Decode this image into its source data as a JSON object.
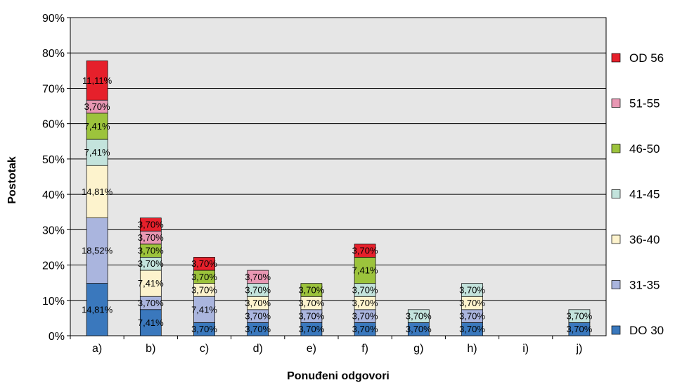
{
  "chart_data": {
    "type": "bar",
    "stacked": true,
    "xlabel": "Ponuđeni odgovori",
    "ylabel": "Postotak",
    "ylim": [
      0,
      90
    ],
    "y_ticks": [
      "0%",
      "10%",
      "20%",
      "30%",
      "40%",
      "50%",
      "60%",
      "70%",
      "80%",
      "90%"
    ],
    "grid": true,
    "legend_position": "right",
    "categories": [
      "a)",
      "b)",
      "c)",
      "d)",
      "e)",
      "f)",
      "g)",
      "h)",
      "i)",
      "j)"
    ],
    "series": [
      {
        "name": "DO 30",
        "color": "#3a78bd",
        "values": [
          14.81,
          7.41,
          3.7,
          3.7,
          3.7,
          3.7,
          3.7,
          3.7,
          0,
          3.7
        ],
        "labels": [
          "14,81%",
          "7,41%",
          "3,70%",
          "3,70%",
          "3,70%",
          "3,70%",
          "3,70%",
          "3,70%",
          "",
          "3,70%"
        ]
      },
      {
        "name": "31-35",
        "color": "#aab5de",
        "values": [
          18.52,
          3.7,
          7.41,
          3.7,
          3.7,
          3.7,
          0,
          3.7,
          0,
          0
        ],
        "labels": [
          "18,52%",
          "3,70%",
          "7,41%",
          "3,70%",
          "3,70%",
          "3,70%",
          "",
          "3,70%",
          "",
          ""
        ]
      },
      {
        "name": "36-40",
        "color": "#fdf3cd",
        "values": [
          14.81,
          7.41,
          3.7,
          3.7,
          3.7,
          3.7,
          0,
          3.7,
          0,
          0
        ],
        "labels": [
          "14,81%",
          "7,41%",
          "3,70%",
          "3,70%",
          "3,70%",
          "3,70%",
          "",
          "3,70%",
          "",
          ""
        ]
      },
      {
        "name": "41-45",
        "color": "#c3e3dc",
        "values": [
          7.41,
          3.7,
          0,
          3.7,
          0,
          3.7,
          3.7,
          3.7,
          0,
          3.7
        ],
        "labels": [
          "7,41%",
          "3,70%",
          "",
          "3,70%",
          "",
          "3,70%",
          "3,70%",
          "3,70%",
          "",
          "3,70%"
        ]
      },
      {
        "name": "46-50",
        "color": "#9cc33c",
        "values": [
          7.41,
          3.7,
          3.7,
          0,
          3.7,
          7.41,
          0,
          0,
          0,
          0
        ],
        "labels": [
          "7,41%",
          "3,70%",
          "3,70%",
          "",
          "3,70%",
          "7,41%",
          "",
          "",
          "",
          ""
        ]
      },
      {
        "name": "51-55",
        "color": "#e897b3",
        "values": [
          3.7,
          3.7,
          0,
          3.7,
          0,
          0,
          0,
          0,
          0,
          0
        ],
        "labels": [
          "3,70%",
          "3,70%",
          "",
          "3,70%",
          "",
          "",
          "",
          "",
          "",
          ""
        ]
      },
      {
        "name": "OD 56",
        "color": "#e6202b",
        "values": [
          11.11,
          3.7,
          3.7,
          0,
          0,
          3.7,
          0,
          0,
          0,
          0
        ],
        "labels": [
          "11,11%",
          "3,70%",
          "3,70%",
          "",
          "",
          "3,70%",
          "",
          "",
          "",
          ""
        ]
      }
    ],
    "legend_order": [
      "OD 56",
      "51-55",
      "46-50",
      "41-45",
      "36-40",
      "31-35",
      "DO 30"
    ]
  }
}
